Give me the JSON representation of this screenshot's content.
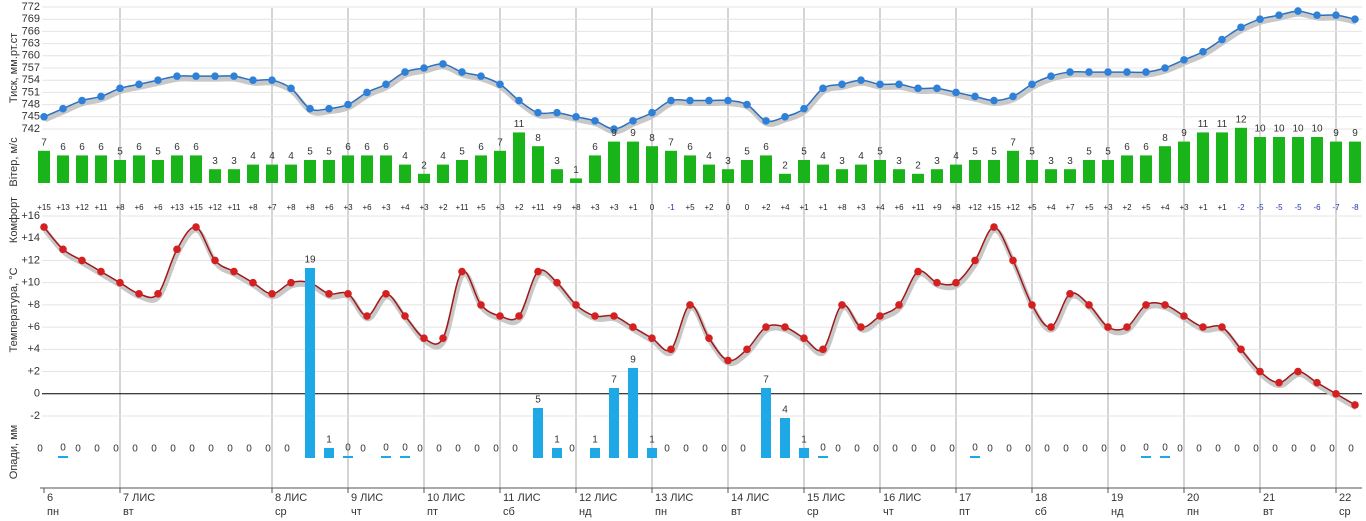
{
  "chart_data": [
    {
      "type": "line",
      "ylabel": "Тиск, мм.рт.ст",
      "color": "#2f80d8",
      "ylim": [
        742,
        772
      ],
      "yticks": [
        742,
        745,
        748,
        751,
        754,
        757,
        760,
        763,
        766,
        769,
        772
      ],
      "grid": true,
      "values": [
        745,
        747,
        749,
        750,
        752,
        753,
        754,
        755,
        755,
        755,
        755,
        754,
        754,
        752,
        747,
        747,
        748,
        751,
        753,
        756,
        757,
        758,
        756,
        755,
        753,
        749,
        746,
        746,
        745,
        744,
        742,
        744,
        746,
        749,
        749,
        749,
        749,
        748,
        744,
        745,
        747,
        752,
        753,
        754,
        753,
        753,
        752,
        752,
        751,
        750,
        749,
        750,
        753,
        755,
        756,
        756,
        756,
        756,
        756,
        757,
        759,
        761,
        764,
        767,
        769,
        770,
        771,
        770,
        770,
        769
      ]
    },
    {
      "type": "bar",
      "ylabel": "Вітер, м/с",
      "color": "#19b419",
      "values": [
        7,
        6,
        6,
        6,
        5,
        6,
        5,
        6,
        6,
        3,
        3,
        4,
        4,
        4,
        5,
        5,
        6,
        6,
        6,
        4,
        2,
        4,
        5,
        6,
        7,
        11,
        8,
        3,
        1,
        6,
        9,
        9,
        8,
        7,
        6,
        4,
        3,
        5,
        6,
        2,
        5,
        4,
        3,
        4,
        5,
        3,
        2,
        3,
        4,
        5,
        5,
        7,
        5,
        3,
        3,
        5,
        5,
        6,
        6,
        8,
        9,
        11,
        11,
        12,
        10,
        10,
        10,
        10,
        9,
        9
      ]
    },
    {
      "type": "line",
      "ylabel": "Температура, °C",
      "color": "#d42020",
      "zero_line": true,
      "ylim": [
        -2,
        16
      ],
      "grid": true,
      "yticks": [
        {
          "value": 16,
          "label": "+16"
        },
        {
          "value": 14,
          "label": "+14"
        },
        {
          "value": 12,
          "label": "+12"
        },
        {
          "value": 10,
          "label": "+10"
        },
        {
          "value": 8,
          "label": "+8"
        },
        {
          "value": 6,
          "label": "+6"
        },
        {
          "value": 4,
          "label": "+4"
        },
        {
          "value": 2,
          "label": "+2"
        },
        0,
        -2
      ],
      "values": [
        15,
        13,
        12,
        11,
        10,
        9,
        9,
        13,
        15,
        12,
        11,
        10,
        9,
        10,
        10,
        9,
        9,
        7,
        9,
        7,
        5,
        5,
        11,
        8,
        7,
        7,
        11,
        10,
        8,
        7,
        7,
        6,
        5,
        4,
        8,
        5,
        3,
        4,
        6,
        6,
        5,
        4,
        8,
        6,
        7,
        8,
        11,
        10,
        10,
        12,
        15,
        12,
        8,
        6,
        9,
        8,
        6,
        6,
        8,
        8,
        7,
        6,
        6,
        4,
        2,
        1,
        2,
        1,
        0,
        -1
      ],
      "comfort_label": "Комфорт",
      "comfort": [
        "+15",
        "+13",
        "+12",
        "+11",
        "+8",
        "+6",
        "+6",
        "+13",
        "+15",
        "+12",
        "+11",
        "+8",
        "+7",
        "+8",
        "+8",
        "+6",
        "+3",
        "+6",
        "+3",
        "+4",
        "+3",
        "+2",
        "+11",
        "+5",
        "+3",
        "+2",
        "+11",
        "+9",
        "+8",
        "+3",
        "+3",
        "+1",
        "0",
        "-1",
        "+5",
        "+2",
        "0",
        "0",
        "+2",
        "+4",
        "+1",
        "+1",
        "+8",
        "+3",
        "+4",
        "+6",
        "+11",
        "+9",
        "+8",
        "+12",
        "+15",
        "+12",
        "+5",
        "+4",
        "+7",
        "+5",
        "+3",
        "+2",
        "+5",
        "+4",
        "+3",
        "+1",
        "+1",
        "-2",
        "-5",
        "-5",
        "-5",
        "-6",
        "-7",
        "-8"
      ]
    },
    {
      "type": "bar",
      "ylabel": "Опади, мм",
      "color": "#1ea8e6",
      "values": [
        0,
        0.2,
        0,
        0,
        0,
        0,
        0,
        0,
        0,
        0,
        0,
        0,
        0,
        0,
        19,
        1,
        0.2,
        0,
        0.2,
        0.2,
        0,
        0,
        0,
        0,
        0,
        0,
        5,
        1,
        0,
        1,
        7,
        9,
        1,
        0,
        0,
        0,
        0,
        0,
        7,
        4,
        1,
        0.2,
        0,
        0,
        0,
        0,
        0,
        0,
        0,
        0.2,
        0,
        0,
        0,
        0,
        0,
        0,
        0,
        0,
        0.2,
        0.2,
        0,
        0,
        0,
        0,
        0,
        0,
        0,
        0,
        0,
        0
      ],
      "value_labels": [
        "0",
        "0",
        "0",
        "0",
        "0",
        "0",
        "0",
        "0",
        "0",
        "0",
        "0",
        "0",
        "0",
        "0",
        "19",
        "1",
        "0",
        "0",
        "0",
        "0",
        "0",
        "0",
        "0",
        "0",
        "0",
        "0",
        "5",
        "1",
        "0",
        "1",
        "7",
        "9",
        "1",
        "0",
        "0",
        "0",
        "0",
        "0",
        "7",
        "4",
        "1",
        "0",
        "0",
        "0",
        "0",
        "0",
        "0",
        "0",
        "0",
        "0",
        "0",
        "0",
        "0",
        "0",
        "0",
        "0",
        "0",
        "0",
        "0",
        "0",
        "0",
        "0",
        "0",
        "0",
        "0",
        "0",
        "0",
        "0",
        "0",
        "0"
      ],
      "categories": [
        "6",
        null,
        null,
        null,
        "7 ЛИС",
        null,
        null,
        null,
        null,
        null,
        null,
        null,
        "8 ЛИС",
        null,
        null,
        null,
        "9 ЛИС",
        null,
        null,
        null,
        "10 ЛИС",
        null,
        null,
        null,
        "11 ЛИС",
        null,
        null,
        null,
        "12 ЛИС",
        null,
        null,
        null,
        "13 ЛИС",
        null,
        null,
        null,
        "14 ЛИС",
        null,
        null,
        null,
        "15 ЛИС",
        null,
        null,
        null,
        "16 ЛИС",
        null,
        null,
        null,
        "17",
        null,
        null,
        null,
        "18",
        null,
        null,
        null,
        "19",
        null,
        null,
        null,
        "20",
        null,
        null,
        null,
        "21",
        null,
        null,
        null,
        "22",
        null
      ],
      "weekdays": [
        "пн",
        null,
        null,
        null,
        "вт",
        null,
        null,
        null,
        null,
        null,
        null,
        null,
        "ср",
        null,
        null,
        null,
        "чт",
        null,
        null,
        null,
        "пт",
        null,
        null,
        null,
        "сб",
        null,
        null,
        null,
        "нд",
        null,
        null,
        null,
        "пн",
        null,
        null,
        null,
        "вт",
        null,
        null,
        null,
        "ср",
        null,
        null,
        null,
        "чт",
        null,
        null,
        null,
        "пт",
        null,
        null,
        null,
        "сб",
        null,
        null,
        null,
        "нд",
        null,
        null,
        null,
        "пн",
        null,
        null,
        null,
        "вт",
        null,
        null,
        null,
        "ср",
        null
      ]
    }
  ]
}
